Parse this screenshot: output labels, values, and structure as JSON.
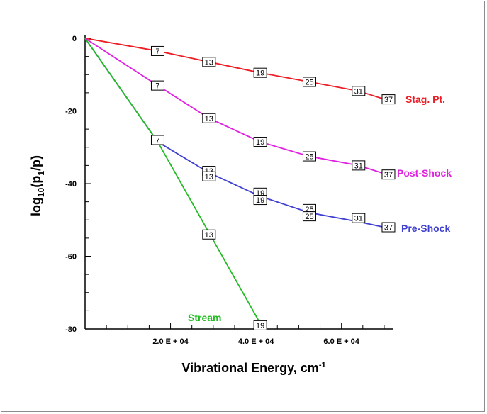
{
  "chart_data": {
    "type": "line",
    "xlabel": "Vibrational Energy, cm",
    "xlabel_sup": "-1",
    "ylabel_main": "log",
    "ylabel_sub": "10",
    "ylabel_open": "(p",
    "ylabel_sub2": "1",
    "ylabel_close": "/p)",
    "xlim": [
      0,
      72000
    ],
    "ylim": [
      -80,
      0
    ],
    "x_ticks": [
      {
        "value": 20000,
        "label": "2.0 E + 04"
      },
      {
        "value": 40000,
        "label": "4.0 E + 04"
      },
      {
        "value": 60000,
        "label": "6.0 E + 04"
      }
    ],
    "y_ticks": [
      {
        "value": 0,
        "label": "0"
      },
      {
        "value": -20,
        "label": "-20"
      },
      {
        "value": -40,
        "label": "-40"
      },
      {
        "value": -60,
        "label": "-60"
      },
      {
        "value": -80,
        "label": "-80"
      }
    ],
    "series": [
      {
        "name": "Stag. Pt.",
        "color": "#ee1c24",
        "x": [
          0,
          17000,
          29000,
          41000,
          52500,
          64000,
          72000
        ],
        "y": [
          0,
          -3.5,
          -6.5,
          -9.5,
          -12.0,
          -14.5,
          -17.5
        ],
        "markers": [
          {
            "label": "7",
            "x": 17000,
            "y": -3.5
          },
          {
            "label": "13",
            "x": 29000,
            "y": -6.5
          },
          {
            "label": "19",
            "x": 41000,
            "y": -9.5
          },
          {
            "label": "25",
            "x": 52500,
            "y": -12.0
          },
          {
            "label": "31",
            "x": 64000,
            "y": -14.5
          },
          {
            "label": "37",
            "x": 71000,
            "y": -16.8
          }
        ]
      },
      {
        "name": "Post-Shock",
        "color": "#e020e0",
        "x": [
          0,
          17000,
          29000,
          41000,
          52500,
          64000,
          72000
        ],
        "y": [
          0,
          -13.0,
          -22.0,
          -28.5,
          -32.5,
          -35.0,
          -38.0
        ],
        "markers": [
          {
            "label": "7",
            "x": 17000,
            "y": -13.0
          },
          {
            "label": "13",
            "x": 29000,
            "y": -22.0
          },
          {
            "label": "19",
            "x": 41000,
            "y": -28.5
          },
          {
            "label": "25",
            "x": 52500,
            "y": -32.5
          },
          {
            "label": "31",
            "x": 64000,
            "y": -35.0
          },
          {
            "label": "37",
            "x": 71000,
            "y": -37.5
          }
        ]
      },
      {
        "name": "Pre-Shock",
        "color": "#4040d0",
        "x": [
          0,
          17000,
          29000,
          41000,
          52500,
          64000,
          72000
        ],
        "y": [
          0,
          -28.5,
          -37.0,
          -43.5,
          -48.0,
          -50.5,
          -52.5
        ],
        "markers": [
          {
            "label": "7",
            "x": 17000,
            "y": -28.0
          },
          {
            "label": "13",
            "x": 29000,
            "y": -36.5
          },
          {
            "label": "13",
            "x": 29000,
            "y": -38.0
          },
          {
            "label": "19",
            "x": 41000,
            "y": -42.5
          },
          {
            "label": "19",
            "x": 41000,
            "y": -44.5
          },
          {
            "label": "25",
            "x": 52500,
            "y": -47.0
          },
          {
            "label": "25",
            "x": 52500,
            "y": -49.0
          },
          {
            "label": "31",
            "x": 64000,
            "y": -49.5
          },
          {
            "label": "37",
            "x": 71000,
            "y": -52.0
          }
        ]
      },
      {
        "name": "Stream",
        "color": "#22bb22",
        "x": [
          0,
          17000,
          41000
        ],
        "y": [
          0,
          -28.5,
          -78.5
        ],
        "markers": [
          {
            "label": "13",
            "x": 29000,
            "y": -54.0
          },
          {
            "label": "19",
            "x": 41000,
            "y": -79.0
          }
        ]
      }
    ],
    "series_labels": [
      {
        "text": "Stag. Pt.",
        "color": "#ee1c24"
      },
      {
        "text": "Post-Shock",
        "color": "#e020e0"
      },
      {
        "text": "Pre-Shock",
        "color": "#4040d0"
      },
      {
        "text": "Stream",
        "color": "#22bb22"
      }
    ]
  }
}
